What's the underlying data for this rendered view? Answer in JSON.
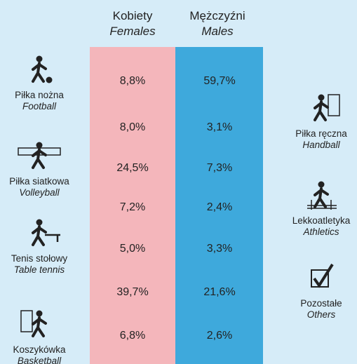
{
  "columns": [
    {
      "label": "Kobiety",
      "label_en": "Females"
    },
    {
      "label": "Mężczyźni",
      "label_en": "Males"
    }
  ],
  "rows": [
    {
      "label": "Piłka nożna",
      "label_en": "Football",
      "females": "8,8%",
      "males": "59,7%"
    },
    {
      "label": "Piłka ręczna",
      "label_en": "Handball",
      "females": "8,0%",
      "males": "3,1%"
    },
    {
      "label": "Piłka siatkowa",
      "label_en": "Volleyball",
      "females": "24,5%",
      "males": "7,3%"
    },
    {
      "label": "Lekkoatletyka",
      "label_en": "Athletics",
      "females": "7,2%",
      "males": "2,4%"
    },
    {
      "label": "Tenis stołowy",
      "label_en": "Table tennis",
      "females": "5,0%",
      "males": "3,3%"
    },
    {
      "label": "Pozostałe",
      "label_en": "Others",
      "females": "39,7%",
      "males": "21,6%"
    },
    {
      "label": "Koszykówka",
      "label_en": "Basketball",
      "females": "6,8%",
      "males": "2,6%"
    }
  ]
}
